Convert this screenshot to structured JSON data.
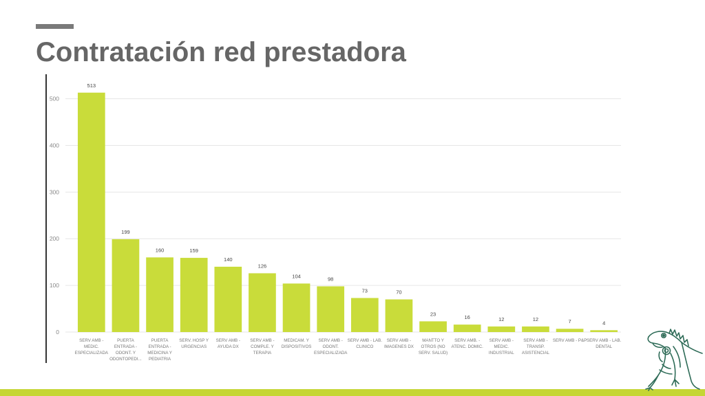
{
  "header": {
    "title": "Contratación red prestadora"
  },
  "colors": {
    "bar": "#c9dc3a",
    "accent": "#c5d635",
    "title": "#666666",
    "grid": "#e6e6e6"
  },
  "logo": {
    "icon": "iguana-icon"
  },
  "chart_data": {
    "type": "bar",
    "title": "",
    "xlabel": "",
    "ylabel": "",
    "ylim": [
      0,
      520
    ],
    "yticks": [
      0,
      100,
      200,
      300,
      400,
      500
    ],
    "grid": true,
    "categories": [
      [
        "SERV AMB -",
        "MEDIC.",
        "ESPECIALIZADA"
      ],
      [
        "PUERTA",
        "ENTRADA -",
        "ODONT. Y",
        "ODONTOPEDI..."
      ],
      [
        "PUERTA",
        "ENTRADA -",
        "MEDICINA Y",
        "PEDIATRIA"
      ],
      [
        "SERV. HOSP Y",
        "URGENCIAS"
      ],
      [
        "SERV AMB -",
        "AYUDA DX"
      ],
      [
        "SERV AMB -",
        "COMPLE. Y",
        "TERAPIA"
      ],
      [
        "MEDICAM. Y",
        "DISPOSITIVOS"
      ],
      [
        "SERV AMB -",
        "ODONT.",
        "ESPECIALIZADA"
      ],
      [
        "SERV AMB - LAB.",
        "CLINICO"
      ],
      [
        "SERV AMB -",
        "IMAGENES DX"
      ],
      [
        "MANTTO Y",
        "OTROS (NO",
        "SERV. SALUD)"
      ],
      [
        "SERV AMB. -",
        "ATENC. DOMIC."
      ],
      [
        "SERV AMB -",
        "MEDIC.",
        "INDUSTRIAL"
      ],
      [
        "SERV AMB -",
        "TRANSP.",
        "ASISTENCIAL"
      ],
      [
        "SERV AMB - P&P"
      ],
      [
        "SERV AMB - LAB.",
        "DENTAL"
      ]
    ],
    "values": [
      513,
      199,
      160,
      159,
      140,
      126,
      104,
      98,
      73,
      70,
      23,
      16,
      12,
      12,
      7,
      4
    ]
  }
}
